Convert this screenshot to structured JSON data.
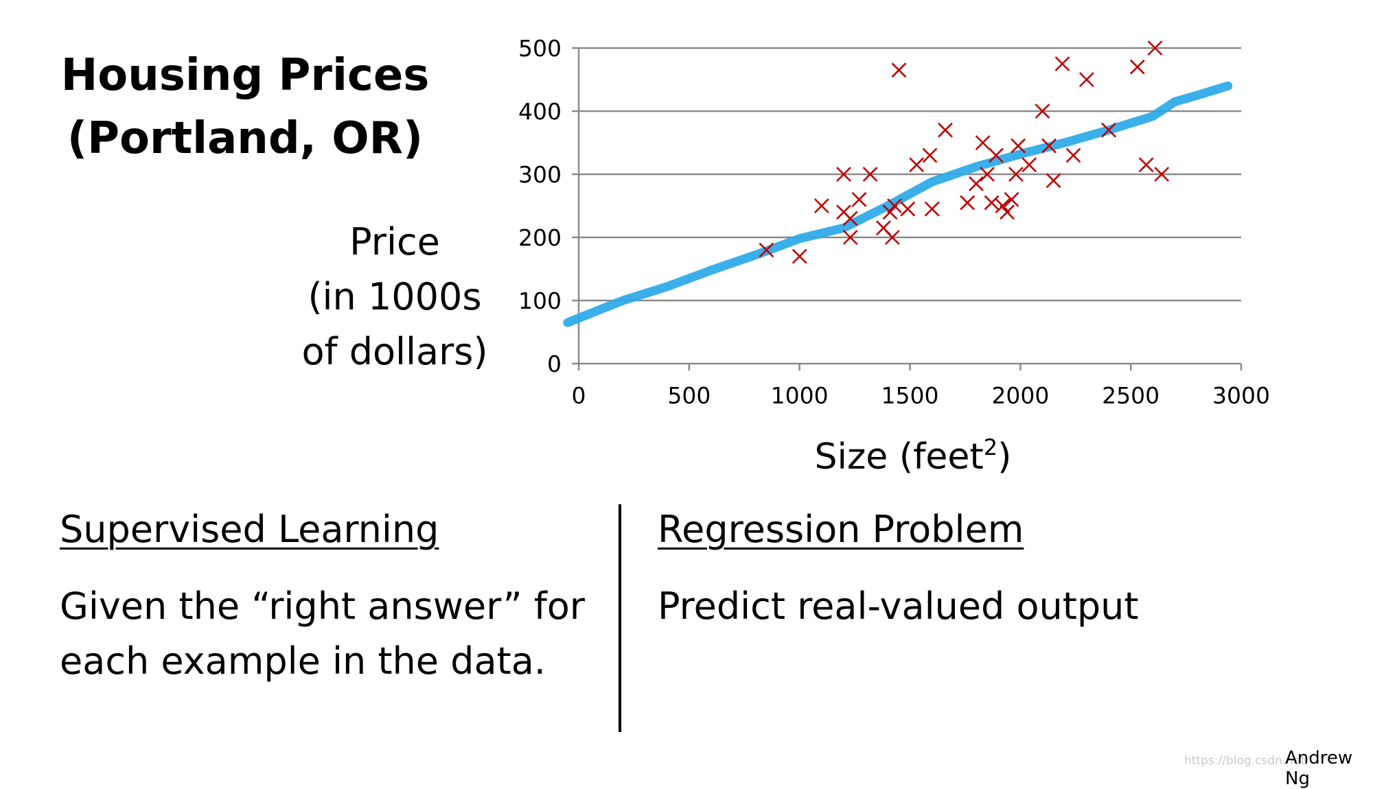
{
  "slide": {
    "title_line1": "Housing Prices",
    "title_line2": "(Portland, OR)",
    "ylabel_line1": "Price",
    "ylabel_line2": "(in 1000s",
    "ylabel_line3": "of dollars)",
    "xlabel_main": "Size (feet",
    "xlabel_sup": "2",
    "xlabel_close": ")",
    "left_heading": "Supervised Learning",
    "left_body_line1": "Given the “right answer” for",
    "left_body_line2": "each example in the data.",
    "right_heading": "Regression Problem",
    "right_body": "Predict real-valued output",
    "author": "Andrew Ng",
    "watermark": "https://blog.csdn.net/"
  },
  "chart_data": {
    "type": "scatter",
    "xlim": [
      0,
      3000
    ],
    "ylim": [
      0,
      500
    ],
    "xticks": [
      0,
      500,
      1000,
      1500,
      2000,
      2500,
      3000
    ],
    "yticks": [
      0,
      100,
      200,
      300,
      400,
      500
    ],
    "grid": "horizontal",
    "marker": "x",
    "point_color": "#c00000",
    "fit_color": "#29a8e8",
    "points": [
      [
        850,
        180
      ],
      [
        1000,
        170
      ],
      [
        1100,
        250
      ],
      [
        1200,
        300
      ],
      [
        1200,
        240
      ],
      [
        1230,
        230
      ],
      [
        1230,
        200
      ],
      [
        1270,
        260
      ],
      [
        1320,
        300
      ],
      [
        1380,
        215
      ],
      [
        1410,
        240
      ],
      [
        1420,
        200
      ],
      [
        1430,
        250
      ],
      [
        1450,
        465
      ],
      [
        1490,
        245
      ],
      [
        1530,
        315
      ],
      [
        1590,
        330
      ],
      [
        1600,
        245
      ],
      [
        1660,
        370
      ],
      [
        1760,
        255
      ],
      [
        1800,
        285
      ],
      [
        1830,
        350
      ],
      [
        1850,
        300
      ],
      [
        1870,
        255
      ],
      [
        1890,
        330
      ],
      [
        1920,
        250
      ],
      [
        1940,
        240
      ],
      [
        1960,
        260
      ],
      [
        1980,
        300
      ],
      [
        1990,
        345
      ],
      [
        2040,
        315
      ],
      [
        2100,
        400
      ],
      [
        2130,
        345
      ],
      [
        2150,
        290
      ],
      [
        2190,
        475
      ],
      [
        2240,
        330
      ],
      [
        2300,
        450
      ],
      [
        2400,
        370
      ],
      [
        2530,
        470
      ],
      [
        2570,
        315
      ],
      [
        2610,
        500
      ],
      [
        2640,
        300
      ]
    ],
    "fit_line": [
      [
        -50,
        65
      ],
      [
        200,
        100
      ],
      [
        400,
        122
      ],
      [
        600,
        148
      ],
      [
        800,
        172
      ],
      [
        1000,
        198
      ],
      [
        1200,
        215
      ],
      [
        1400,
        250
      ],
      [
        1600,
        288
      ],
      [
        1800,
        312
      ],
      [
        2000,
        332
      ],
      [
        2200,
        350
      ],
      [
        2400,
        370
      ],
      [
        2600,
        392
      ],
      [
        2700,
        415
      ],
      [
        2800,
        425
      ],
      [
        2940,
        440
      ]
    ]
  }
}
